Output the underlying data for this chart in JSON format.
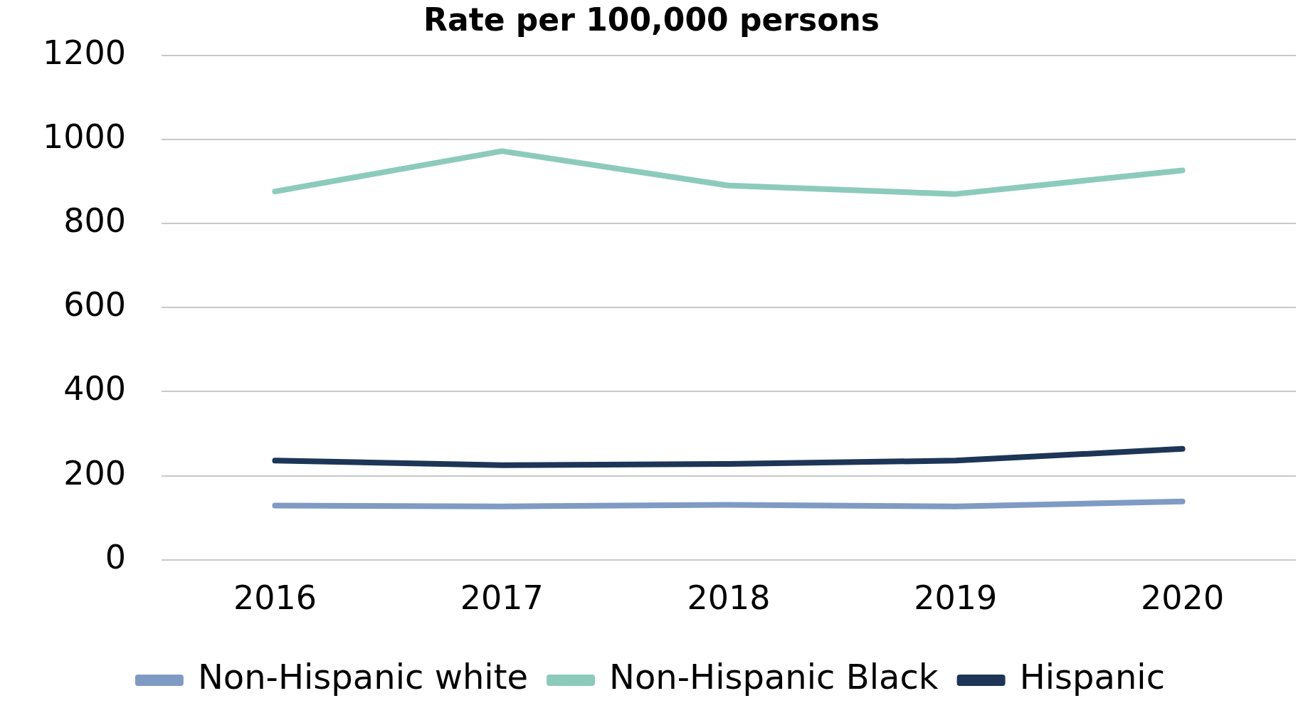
{
  "chart_data": {
    "type": "line",
    "title": "Rate per 100,000 persons",
    "categories": [
      "2016",
      "2017",
      "2018",
      "2019",
      "2020"
    ],
    "series": [
      {
        "name": "Non-Hispanic white",
        "color": "#7f9bc4",
        "values": [
          129,
          127,
          131,
          127,
          139
        ]
      },
      {
        "name": "Non-Hispanic Black",
        "color": "#8ccbbc",
        "values": [
          876,
          972,
          890,
          870,
          926
        ]
      },
      {
        "name": "Hispanic",
        "color": "#1d3557",
        "values": [
          236,
          225,
          228,
          236,
          264
        ]
      }
    ],
    "ylim": [
      0,
      1200
    ],
    "yticks": [
      0,
      200,
      400,
      600,
      800,
      1000,
      1200
    ],
    "grid": "y",
    "legend": "bottom",
    "marker": "none",
    "line_style": "solid"
  }
}
